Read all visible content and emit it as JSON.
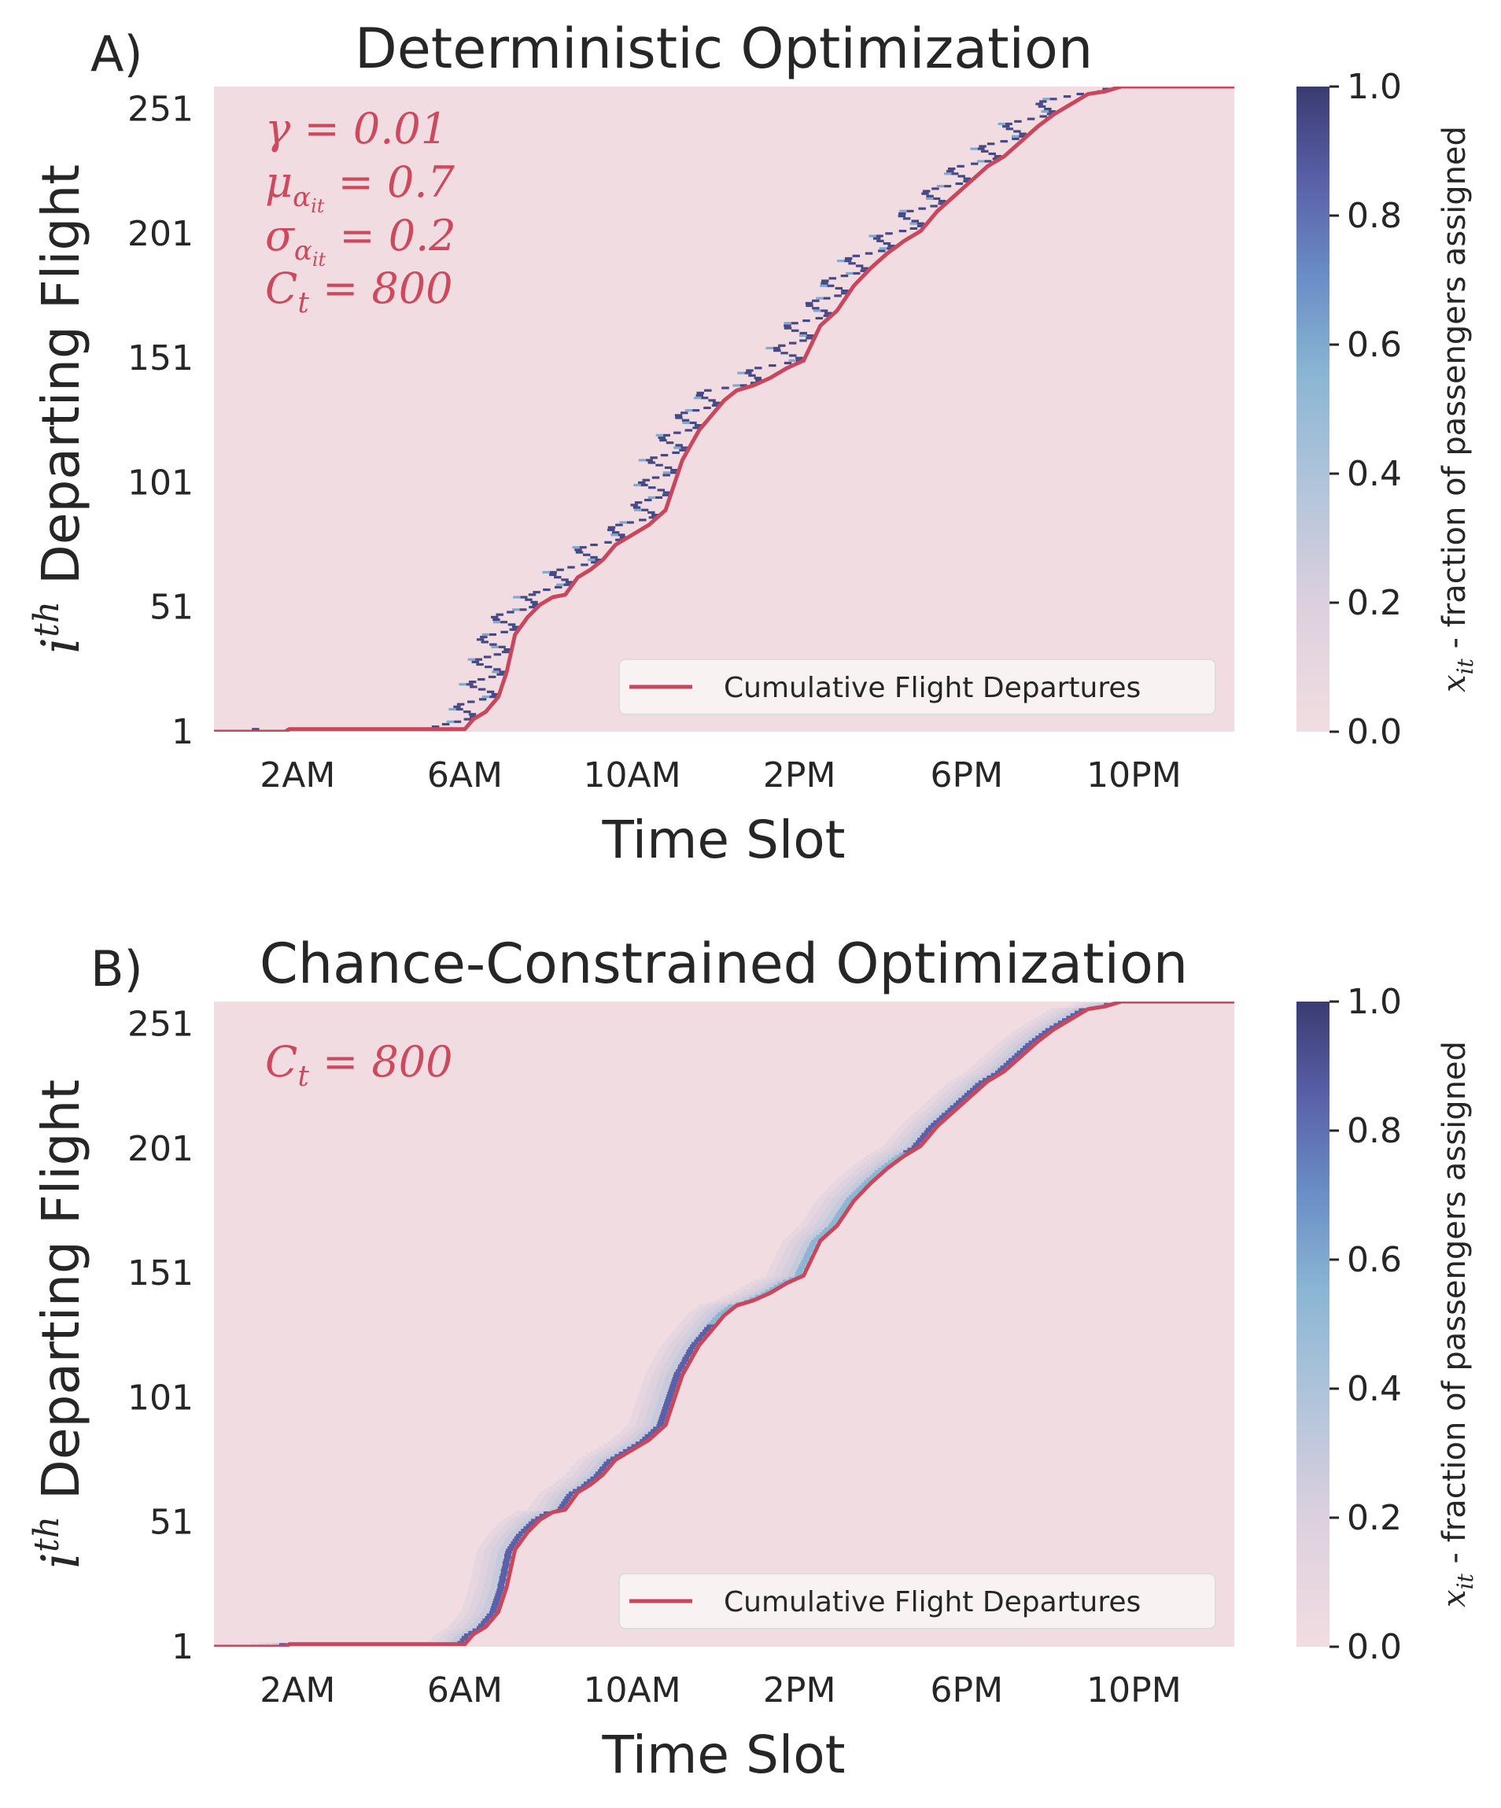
{
  "colors": {
    "background": "#f1dde1",
    "curve": "#c8475c",
    "annotation": "#cc4a5e",
    "cmap_low": "#f1dde1",
    "cmap_mid": "#8bb6d4",
    "cmap_high": "#3a3b72"
  },
  "colorbar": {
    "label": "x_it - fraction of passengers assigned",
    "label_symbol": "x",
    "label_sub": "it",
    "label_rest": " - fraction of passengers assigned",
    "ticks": [
      "0.0",
      "0.2",
      "0.4",
      "0.6",
      "0.8",
      "1.0"
    ]
  },
  "chart_data": [
    {
      "type": "heatmap",
      "panel_letter": "A)",
      "title": "Deterministic Optimization",
      "xlabel": "Time Slot",
      "ylabel_prefix": "i",
      "ylabel_sup": "th",
      "ylabel_rest": " Departing Flight",
      "x_tick_labels": [
        "2AM",
        "6AM",
        "10AM",
        "2PM",
        "6PM",
        "10PM"
      ],
      "x_tick_hours": [
        2,
        6,
        10,
        14,
        18,
        22
      ],
      "xlim_hours": [
        0,
        24.4
      ],
      "y_tick_labels": [
        "1",
        "51",
        "101",
        "151",
        "201",
        "251"
      ],
      "y_tick_values": [
        1,
        51,
        101,
        151,
        201,
        251
      ],
      "ylim": [
        1,
        260
      ],
      "annotations": [
        "γ = 0.01",
        "μ_αit = 0.7",
        "σ_αit = 0.2",
        "C_t = 800"
      ],
      "legend": "Cumulative Flight Departures",
      "legend_position": "lower right",
      "assignment": "deterministic",
      "cumulative_departures": {
        "hours": [
          0,
          1.7,
          1.8,
          6.0,
          6.2,
          6.5,
          6.8,
          7.0,
          7.2,
          7.5,
          7.8,
          8.1,
          8.4,
          8.7,
          9.0,
          9.3,
          9.6,
          10.0,
          10.4,
          10.8,
          11.2,
          11.6,
          11.9,
          12.2,
          12.5,
          12.9,
          13.3,
          13.7,
          14.1,
          14.5,
          14.9,
          15.3,
          15.7,
          16.1,
          16.5,
          16.9,
          17.3,
          17.7,
          18.1,
          18.5,
          18.9,
          19.3,
          19.7,
          20.1,
          20.5,
          20.9,
          21.3,
          21.7,
          22.0,
          22.3,
          22.6,
          23.0,
          23.3,
          24.4
        ],
        "flights": [
          1,
          1,
          2,
          2,
          6,
          9,
          15,
          25,
          40,
          47,
          52,
          55,
          56,
          63,
          66,
          70,
          76,
          80,
          84,
          90,
          110,
          122,
          128,
          134,
          138,
          140,
          143,
          147,
          150,
          164,
          170,
          180,
          187,
          193,
          198,
          202,
          210,
          216,
          222,
          228,
          232,
          238,
          244,
          249,
          253,
          257,
          258,
          260,
          260,
          260,
          260,
          260,
          260,
          260
        ]
      }
    },
    {
      "type": "heatmap",
      "panel_letter": "B)",
      "title": "Chance-Constrained Optimization",
      "xlabel": "Time Slot",
      "ylabel_prefix": "i",
      "ylabel_sup": "th",
      "ylabel_rest": " Departing Flight",
      "x_tick_labels": [
        "2AM",
        "6AM",
        "10AM",
        "2PM",
        "6PM",
        "10PM"
      ],
      "x_tick_hours": [
        2,
        6,
        10,
        14,
        18,
        22
      ],
      "xlim_hours": [
        0,
        24.4
      ],
      "y_tick_labels": [
        "1",
        "51",
        "101",
        "151",
        "201",
        "251"
      ],
      "y_tick_values": [
        1,
        51,
        101,
        151,
        201,
        251
      ],
      "ylim": [
        1,
        260
      ],
      "annotations": [
        "C_t = 800"
      ],
      "legend": "Cumulative Flight Departures",
      "legend_position": "lower right",
      "assignment": "chance-constrained",
      "cumulative_departures": {
        "hours": [
          0,
          1.7,
          1.8,
          6.0,
          6.2,
          6.5,
          6.8,
          7.0,
          7.2,
          7.5,
          7.8,
          8.1,
          8.4,
          8.7,
          9.0,
          9.3,
          9.6,
          10.0,
          10.4,
          10.8,
          11.2,
          11.6,
          11.9,
          12.2,
          12.5,
          12.9,
          13.3,
          13.7,
          14.1,
          14.5,
          14.9,
          15.3,
          15.7,
          16.1,
          16.5,
          16.9,
          17.3,
          17.7,
          18.1,
          18.5,
          18.9,
          19.3,
          19.7,
          20.1,
          20.5,
          20.9,
          21.3,
          21.7,
          22.0,
          22.3,
          22.6,
          23.0,
          23.3,
          24.4
        ],
        "flights": [
          1,
          1,
          2,
          2,
          6,
          9,
          15,
          25,
          40,
          47,
          52,
          55,
          56,
          63,
          66,
          70,
          76,
          80,
          84,
          90,
          110,
          122,
          128,
          134,
          138,
          140,
          143,
          147,
          150,
          164,
          170,
          180,
          187,
          193,
          198,
          202,
          210,
          216,
          222,
          228,
          232,
          238,
          244,
          249,
          253,
          257,
          258,
          260,
          260,
          260,
          260,
          260,
          260,
          260
        ]
      }
    }
  ]
}
